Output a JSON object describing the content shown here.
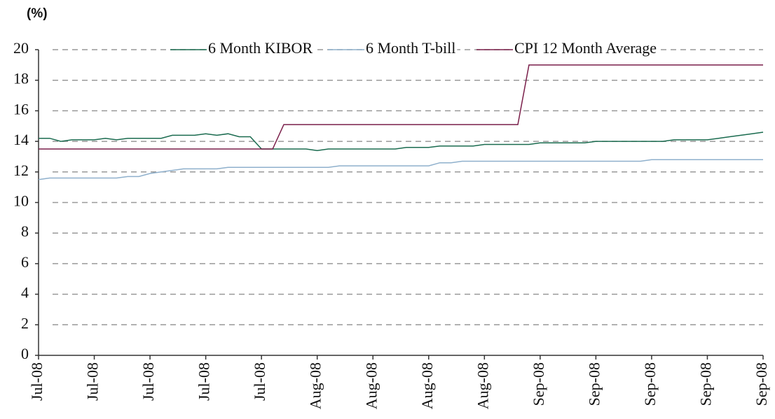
{
  "chart_data": {
    "type": "line",
    "y_label": "(%)",
    "categories": [
      "Jul-08",
      null,
      null,
      null,
      null,
      "Jul-08",
      null,
      null,
      null,
      null,
      "Jul-08",
      null,
      null,
      null,
      null,
      "Jul-08",
      null,
      null,
      null,
      null,
      "Jul-08",
      null,
      null,
      null,
      null,
      "Aug-08",
      null,
      null,
      null,
      null,
      "Aug-08",
      null,
      null,
      null,
      null,
      "Aug-08",
      null,
      null,
      null,
      null,
      "Aug-08",
      null,
      null,
      null,
      null,
      "Sep-08",
      null,
      null,
      null,
      null,
      "Sep-08",
      null,
      null,
      null,
      null,
      "Sep-08",
      null,
      null,
      null,
      null,
      "Sep-08",
      null,
      null,
      null,
      null,
      "Sep-08"
    ],
    "series": [
      {
        "name": "6 Month KIBOR",
        "color": "#1a6b4f",
        "values": [
          14.2,
          14.2,
          14.0,
          14.1,
          14.1,
          14.1,
          14.2,
          14.1,
          14.2,
          14.2,
          14.2,
          14.2,
          14.4,
          14.4,
          14.4,
          14.5,
          14.4,
          14.5,
          14.3,
          14.3,
          13.5,
          13.5,
          13.5,
          13.5,
          13.5,
          13.4,
          13.5,
          13.5,
          13.5,
          13.5,
          13.5,
          13.5,
          13.5,
          13.6,
          13.6,
          13.6,
          13.7,
          13.7,
          13.7,
          13.7,
          13.8,
          13.8,
          13.8,
          13.8,
          13.8,
          13.9,
          13.9,
          13.9,
          13.9,
          13.9,
          14.0,
          14.0,
          14.0,
          14.0,
          14.0,
          14.0,
          14.0,
          14.1,
          14.1,
          14.1,
          14.1,
          14.2,
          14.3,
          14.4,
          14.5,
          14.6
        ]
      },
      {
        "name": "6 Month T-bill",
        "color": "#8fb0cc",
        "values": [
          11.5,
          11.6,
          11.6,
          11.6,
          11.6,
          11.6,
          11.6,
          11.6,
          11.7,
          11.7,
          11.9,
          12.0,
          12.1,
          12.2,
          12.2,
          12.2,
          12.2,
          12.3,
          12.3,
          12.3,
          12.3,
          12.3,
          12.3,
          12.3,
          12.3,
          12.3,
          12.3,
          12.4,
          12.4,
          12.4,
          12.4,
          12.4,
          12.4,
          12.4,
          12.4,
          12.4,
          12.6,
          12.6,
          12.7,
          12.7,
          12.7,
          12.7,
          12.7,
          12.7,
          12.7,
          12.7,
          12.7,
          12.7,
          12.7,
          12.7,
          12.7,
          12.7,
          12.7,
          12.7,
          12.7,
          12.8,
          12.8,
          12.8,
          12.8,
          12.8,
          12.8,
          12.8,
          12.8,
          12.8,
          12.8,
          12.8
        ]
      },
      {
        "name": "CPI 12 Month Average",
        "color": "#7a1f4a",
        "values": [
          13.5,
          13.5,
          13.5,
          13.5,
          13.5,
          13.5,
          13.5,
          13.5,
          13.5,
          13.5,
          13.5,
          13.5,
          13.5,
          13.5,
          13.5,
          13.5,
          13.5,
          13.5,
          13.5,
          13.5,
          13.5,
          13.5,
          15.1,
          15.1,
          15.1,
          15.1,
          15.1,
          15.1,
          15.1,
          15.1,
          15.1,
          15.1,
          15.1,
          15.1,
          15.1,
          15.1,
          15.1,
          15.1,
          15.1,
          15.1,
          15.1,
          15.1,
          15.1,
          15.1,
          19.0,
          19.0,
          19.0,
          19.0,
          19.0,
          19.0,
          19.0,
          19.0,
          19.0,
          19.0,
          19.0,
          19.0,
          19.0,
          19.0,
          19.0,
          19.0,
          19.0,
          19.0,
          19.0,
          19.0,
          19.0,
          19.0
        ]
      }
    ],
    "ylim": [
      0,
      20
    ],
    "yticks": [
      0,
      2,
      4,
      6,
      8,
      10,
      12,
      14,
      16,
      18,
      20
    ],
    "grid": true,
    "legend": "top"
  }
}
